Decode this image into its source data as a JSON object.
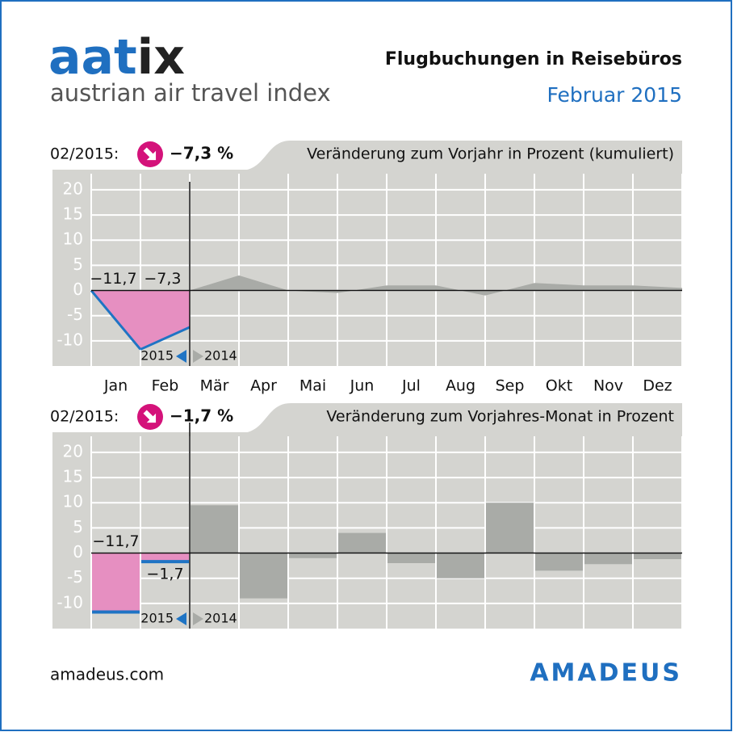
{
  "header": {
    "logo_blue": "aat",
    "logo_dark": "ix",
    "tagline": "austrian air travel index",
    "title": "Flugbuchungen in Reisebüros",
    "date": "Februar 2015"
  },
  "chart_data": [
    {
      "type": "area",
      "period": "02/2015:",
      "headline": {
        "value": -7.3,
        "label": "−7,3 %"
      },
      "subtitle": "Veränderung zum Vorjahr in Prozent (kumuliert)",
      "categories": [
        "Jan",
        "Feb",
        "Mär",
        "Apr",
        "Mai",
        "Jun",
        "Jul",
        "Aug",
        "Sep",
        "Okt",
        "Nov",
        "Dez"
      ],
      "series": [
        {
          "name": "2015",
          "color": "#e68fc1",
          "line_color": "#1f74c4",
          "values": [
            -11.7,
            -7.3,
            null,
            null,
            null,
            null,
            null,
            null,
            null,
            null,
            null,
            null
          ],
          "value_labels": [
            "−11,7",
            "−7,3",
            null,
            null,
            null,
            null,
            null,
            null,
            null,
            null,
            null,
            null
          ]
        },
        {
          "name": "2014",
          "color": "#a9aba7",
          "values": [
            null,
            0,
            3,
            0,
            -0.5,
            1,
            1,
            -1,
            1.5,
            1,
            1,
            0.5
          ]
        }
      ],
      "ylim": [
        -15,
        24
      ],
      "yticks": [
        -10,
        -5,
        0,
        5,
        10,
        15,
        20
      ],
      "grid": true
    },
    {
      "type": "bar",
      "period": "02/2015:",
      "headline": {
        "value": -1.7,
        "label": "−1,7 %"
      },
      "subtitle": "Veränderung zum Vorjahres-Monat in Prozent",
      "series": [
        {
          "name": "2015",
          "color": "#e68fc1",
          "line_color": "#1f74c4",
          "values": [
            -11.7,
            -1.7,
            null,
            null,
            null,
            null,
            null,
            null,
            null,
            null,
            null,
            null
          ],
          "value_labels": [
            "−11,7",
            "−1,7",
            null,
            null,
            null,
            null,
            null,
            null,
            null,
            null,
            null,
            null
          ]
        },
        {
          "name": "2014",
          "color": "#a9aba7",
          "values": [
            null,
            null,
            9.5,
            -9,
            -1,
            4,
            -2,
            -5,
            10,
            -3.5,
            -2.2,
            -1.2
          ]
        }
      ],
      "ylim": [
        -15,
        24
      ],
      "yticks": [
        -10,
        -5,
        0,
        5,
        10,
        15,
        20
      ],
      "grid": true
    }
  ],
  "footer": {
    "url": "amadeus.com",
    "brand": "AMADEUS"
  }
}
